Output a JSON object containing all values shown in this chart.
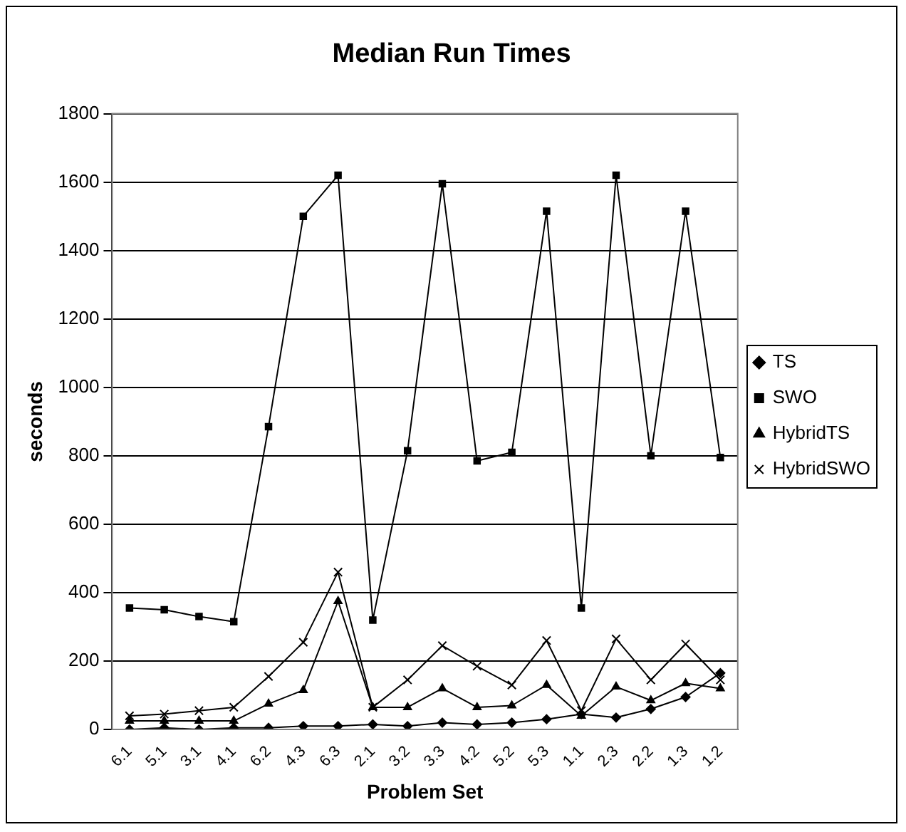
{
  "chart_data": {
    "type": "line",
    "title": "Median Run Times",
    "xlabel": "Problem Set",
    "ylabel": "seconds",
    "categories": [
      "6.1",
      "5.1",
      "3.1",
      "4.1",
      "6.2",
      "4.3",
      "6.3",
      "2.1",
      "3.2",
      "3.3",
      "4.2",
      "5.2",
      "5.3",
      "1.1",
      "2.3",
      "2.2",
      "1.3",
      "1.2"
    ],
    "series": [
      {
        "name": "TS",
        "color": "#000000",
        "marker": "diamond",
        "values": [
          0,
          5,
          0,
          5,
          5,
          10,
          10,
          15,
          10,
          20,
          15,
          20,
          30,
          45,
          35,
          60,
          95,
          165
        ]
      },
      {
        "name": "SWO",
        "color": "#000000",
        "marker": "square",
        "values": [
          355,
          350,
          330,
          315,
          885,
          1500,
          1620,
          320,
          815,
          1595,
          785,
          810,
          1515,
          355,
          1620,
          800,
          1515,
          795
        ]
      },
      {
        "name": "HybridTS",
        "color": "#000000",
        "marker": "triangle",
        "values": [
          25,
          25,
          25,
          25,
          75,
          115,
          375,
          65,
          65,
          120,
          65,
          70,
          130,
          40,
          125,
          85,
          135,
          120
        ]
      },
      {
        "name": "HybridSWO",
        "color": "#000000",
        "marker": "cross",
        "values": [
          40,
          45,
          55,
          65,
          155,
          255,
          460,
          65,
          145,
          245,
          185,
          130,
          260,
          55,
          265,
          145,
          250,
          145
        ]
      }
    ],
    "ylim": [
      0,
      1800
    ],
    "yticks": [
      0,
      200,
      400,
      600,
      800,
      1000,
      1200,
      1400,
      1600,
      1800
    ],
    "grid": "y",
    "legend": "right",
    "line_style": "solid"
  }
}
